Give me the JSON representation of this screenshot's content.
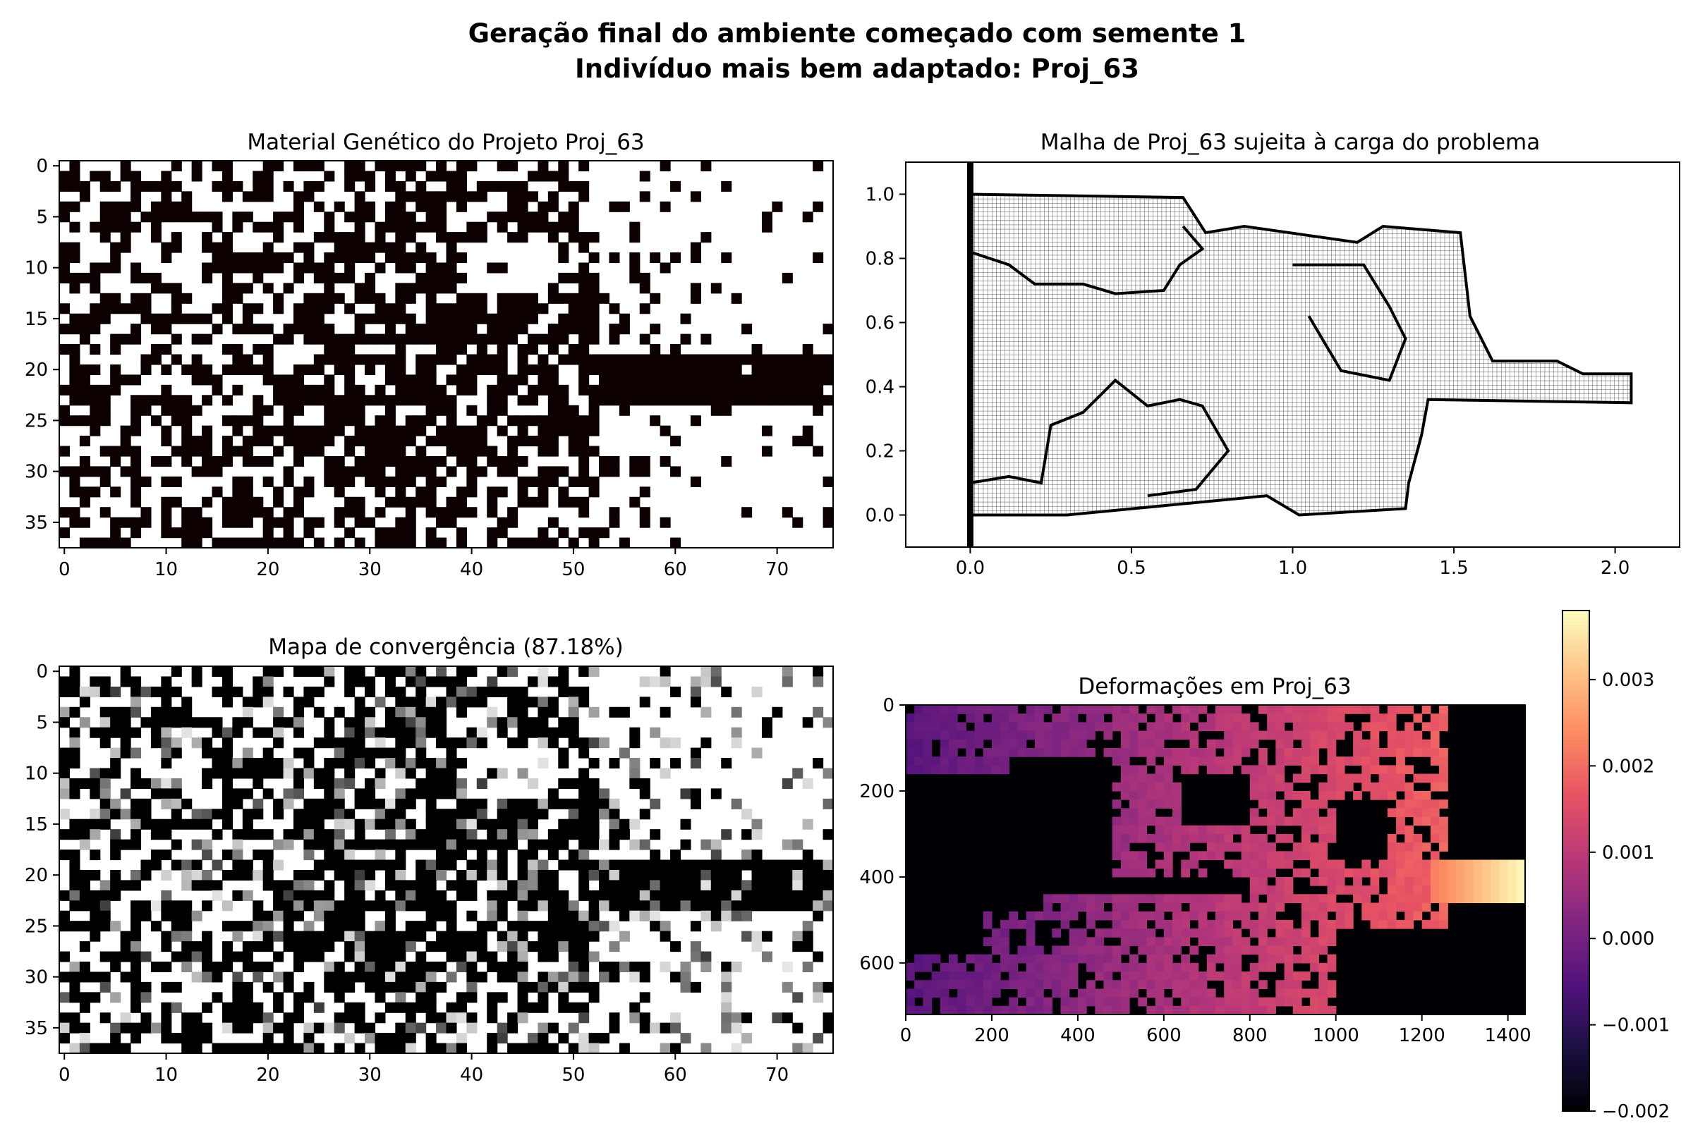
{
  "figure": {
    "title_line1": "Geração final do ambiente começado com semente 1",
    "title_line2": "Indivíduo mais bem adaptado: Proj_63"
  },
  "chart_data": [
    {
      "type": "heatmap",
      "title": "Material Genético do Projeto Proj_63",
      "xlim": [
        0,
        75
      ],
      "ylim": [
        37,
        0
      ],
      "xticks": [
        0,
        10,
        20,
        30,
        40,
        50,
        60,
        70
      ],
      "yticks": [
        0,
        5,
        10,
        15,
        20,
        25,
        30,
        35
      ],
      "grid_size": [
        76,
        38
      ],
      "colormap": "black (material) / white (void)",
      "colors": {
        "material": "#0d0000",
        "void": "#ffffff"
      },
      "regions_approx": [
        {
          "desc": "solid band",
          "x": [
            53,
            75
          ],
          "y": [
            19,
            23
          ],
          "value": 1
        },
        {
          "desc": "void",
          "x": [
            40,
            48
          ],
          "y": [
            8,
            12
          ],
          "value": 0
        },
        {
          "desc": "mostly void",
          "x": [
            53,
            75
          ],
          "y": [
            0,
            18
          ],
          "value": 0
        },
        {
          "desc": "mostly void",
          "x": [
            53,
            75
          ],
          "y": [
            24,
            37
          ],
          "value": 0
        }
      ]
    },
    {
      "type": "line",
      "title": "Malha de Proj_63 sujeita à carga do problema",
      "xlim": [
        -0.2,
        2.2
      ],
      "ylim": [
        -0.1,
        1.1
      ],
      "xticks": [
        0.0,
        0.5,
        1.0,
        1.5,
        2.0
      ],
      "xtick_labels": [
        "0.0",
        "0.5",
        "1.0",
        "1.5",
        "2.0"
      ],
      "yticks": [
        0.0,
        0.2,
        0.4,
        0.6,
        0.8,
        1.0
      ],
      "ytick_labels": [
        "0.0",
        "0.2",
        "0.4",
        "0.6",
        "0.8",
        "1.0"
      ],
      "support_x": 0.0,
      "series": [
        {
          "values": [
            [
              0,
              1.0
            ],
            [
              0.66,
              0.99
            ],
            [
              0.73,
              0.88
            ],
            [
              0.85,
              0.9
            ],
            [
              1.2,
              0.85
            ],
            [
              1.28,
              0.9
            ],
            [
              1.52,
              0.88
            ],
            [
              1.55,
              0.62
            ],
            [
              1.62,
              0.48
            ],
            [
              1.82,
              0.48
            ],
            [
              1.9,
              0.44
            ],
            [
              2.05,
              0.44
            ],
            [
              2.05,
              0.35
            ],
            [
              1.42,
              0.36
            ],
            [
              1.4,
              0.25
            ],
            [
              1.36,
              0.1
            ],
            [
              1.35,
              0.02
            ],
            [
              1.02,
              0.0
            ],
            [
              0.92,
              0.06
            ],
            [
              0.3,
              0.0
            ],
            [
              0.0,
              0.0
            ]
          ]
        },
        {
          "values": [
            [
              0,
              0.82
            ],
            [
              0.12,
              0.78
            ],
            [
              0.2,
              0.72
            ],
            [
              0.35,
              0.72
            ],
            [
              0.45,
              0.69
            ],
            [
              0.6,
              0.7
            ],
            [
              0.65,
              0.78
            ],
            [
              0.72,
              0.83
            ],
            [
              0.66,
              0.9
            ]
          ]
        },
        {
          "values": [
            [
              0,
              0.1
            ],
            [
              0.12,
              0.12
            ],
            [
              0.22,
              0.1
            ],
            [
              0.25,
              0.28
            ],
            [
              0.35,
              0.32
            ],
            [
              0.45,
              0.42
            ],
            [
              0.55,
              0.34
            ],
            [
              0.65,
              0.36
            ],
            [
              0.72,
              0.34
            ],
            [
              0.8,
              0.2
            ],
            [
              0.7,
              0.08
            ],
            [
              0.55,
              0.06
            ]
          ]
        },
        {
          "values": [
            [
              1.0,
              0.78
            ],
            [
              1.22,
              0.78
            ],
            [
              1.3,
              0.65
            ],
            [
              1.35,
              0.55
            ],
            [
              1.3,
              0.42
            ],
            [
              1.15,
              0.45
            ],
            [
              1.05,
              0.62
            ]
          ]
        }
      ]
    },
    {
      "type": "heatmap",
      "title": "Mapa de convergência (87.18%)",
      "xlim": [
        0,
        75
      ],
      "ylim": [
        37,
        0
      ],
      "xticks": [
        0,
        10,
        20,
        30,
        40,
        50,
        60,
        70
      ],
      "yticks": [
        0,
        5,
        10,
        15,
        20,
        25,
        30,
        35
      ],
      "convergence_percent": 87.18,
      "colormap": "grayscale (black = material, white = void, gray = not converged)"
    },
    {
      "type": "heatmap",
      "title": "Deformações em Proj_63",
      "xlim": [
        0,
        1440
      ],
      "ylim": [
        720,
        0
      ],
      "xticks": [
        0,
        200,
        400,
        600,
        800,
        1000,
        1200,
        1400
      ],
      "yticks": [
        0,
        200,
        400,
        600
      ],
      "colormap": "magma",
      "colorbar": {
        "min": -0.002,
        "max": 0.0038,
        "ticks": [
          -0.002,
          -0.001,
          0.0,
          0.001,
          0.002,
          0.003
        ],
        "tick_labels": [
          "−0.002",
          "−0.001",
          "0.000",
          "0.001",
          "0.002",
          "0.003"
        ]
      },
      "value_range_in_structure": [
        -0.0003,
        0.0038
      ],
      "max_at": "right tip (x≈1420, y≈400)"
    }
  ]
}
